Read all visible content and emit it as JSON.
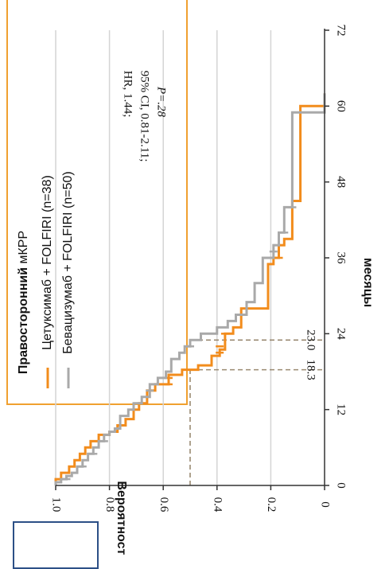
{
  "chart_data": {
    "type": "line",
    "subtype": "kaplan-meier",
    "orientation": "rotated-90-clockwise",
    "title_bold": "Правосторонний",
    "title_rest": " мКРР",
    "xlabel": "месяцы",
    "ylabel": "Вероятность ОВ",
    "xlim": [
      0,
      72
    ],
    "ylim": [
      0,
      1.0
    ],
    "xticks": [
      "0",
      "12",
      "24",
      "36",
      "48",
      "60",
      "72"
    ],
    "yticks": [
      "0",
      "0.2",
      "0.4",
      "0.6",
      "0.8",
      "1.0"
    ],
    "grid": true,
    "legend_position": "top-left",
    "stats": {
      "line1": "HR, 1.44;",
      "line2": "95% CI, 0.81-2.11;",
      "line3": "P=.28"
    },
    "medians": [
      {
        "label": "18.3",
        "x": 18.3,
        "y": 0.5
      },
      {
        "label": "23.0",
        "x": 23.0,
        "y": 0.5
      }
    ],
    "series": [
      {
        "name": "Цетуксимаб + FOLFIRI (n=38)",
        "color": "#f28c1c",
        "points": [
          [
            0,
            1.0
          ],
          [
            1,
            1.0
          ],
          [
            1,
            0.98
          ],
          [
            2,
            0.98
          ],
          [
            2,
            0.95
          ],
          [
            3,
            0.95
          ],
          [
            3,
            0.93
          ],
          [
            4,
            0.93
          ],
          [
            4,
            0.91
          ],
          [
            5,
            0.91
          ],
          [
            5,
            0.89
          ],
          [
            6,
            0.89
          ],
          [
            6,
            0.87
          ],
          [
            7,
            0.87
          ],
          [
            7,
            0.84
          ],
          [
            8,
            0.84
          ],
          [
            8,
            0.8
          ],
          [
            8.5,
            0.8
          ],
          [
            8.5,
            0.77
          ],
          [
            9.5,
            0.77
          ],
          [
            9.5,
            0.74
          ],
          [
            10.5,
            0.74
          ],
          [
            10.5,
            0.71
          ],
          [
            12,
            0.71
          ],
          [
            12,
            0.69
          ],
          [
            13,
            0.69
          ],
          [
            13,
            0.66
          ],
          [
            15,
            0.66
          ],
          [
            15,
            0.63
          ],
          [
            16,
            0.63
          ],
          [
            16,
            0.58
          ],
          [
            17.5,
            0.58
          ],
          [
            17.5,
            0.53
          ],
          [
            18.3,
            0.53
          ],
          [
            18.3,
            0.47
          ],
          [
            19,
            0.47
          ],
          [
            19,
            0.42
          ],
          [
            20.5,
            0.42
          ],
          [
            20.5,
            0.39
          ],
          [
            21.5,
            0.39
          ],
          [
            21.5,
            0.37
          ],
          [
            24,
            0.37
          ],
          [
            24,
            0.34
          ],
          [
            25,
            0.34
          ],
          [
            25,
            0.31
          ],
          [
            28,
            0.31
          ],
          [
            28,
            0.21
          ],
          [
            35,
            0.21
          ],
          [
            35,
            0.19
          ],
          [
            36,
            0.19
          ],
          [
            36,
            0.17
          ],
          [
            38,
            0.17
          ],
          [
            38,
            0.15
          ],
          [
            39,
            0.15
          ],
          [
            39,
            0.12
          ],
          [
            45,
            0.12
          ],
          [
            45,
            0.09
          ],
          [
            60,
            0.09
          ],
          [
            60,
            0.0
          ],
          [
            62,
            0.0
          ]
        ],
        "censored": [
          [
            16,
            0.58
          ],
          [
            17,
            0.58
          ],
          [
            21,
            0.39
          ],
          [
            22,
            0.39
          ],
          [
            24,
            0.37
          ],
          [
            36,
            0.17
          ]
        ]
      },
      {
        "name": "Бевацизумаб + FOLFIRI (n=50)",
        "color": "#a9a9a9",
        "points": [
          [
            0,
            1.0
          ],
          [
            0.5,
            1.0
          ],
          [
            0.5,
            0.98
          ],
          [
            1,
            0.98
          ],
          [
            1,
            0.96
          ],
          [
            1.5,
            0.96
          ],
          [
            1.5,
            0.94
          ],
          [
            2,
            0.94
          ],
          [
            2,
            0.92
          ],
          [
            3,
            0.92
          ],
          [
            3,
            0.9
          ],
          [
            4,
            0.9
          ],
          [
            4,
            0.88
          ],
          [
            5,
            0.88
          ],
          [
            5,
            0.86
          ],
          [
            6,
            0.86
          ],
          [
            6,
            0.84
          ],
          [
            7,
            0.84
          ],
          [
            7,
            0.82
          ],
          [
            8,
            0.82
          ],
          [
            8,
            0.8
          ],
          [
            8.5,
            0.8
          ],
          [
            8.5,
            0.78
          ],
          [
            9,
            0.78
          ],
          [
            9,
            0.76
          ],
          [
            11,
            0.76
          ],
          [
            11,
            0.73
          ],
          [
            12,
            0.73
          ],
          [
            12,
            0.71
          ],
          [
            13,
            0.71
          ],
          [
            13,
            0.68
          ],
          [
            14,
            0.68
          ],
          [
            14,
            0.65
          ],
          [
            16,
            0.65
          ],
          [
            16,
            0.62
          ],
          [
            17,
            0.62
          ],
          [
            17,
            0.59
          ],
          [
            18,
            0.59
          ],
          [
            18,
            0.57
          ],
          [
            20,
            0.57
          ],
          [
            20,
            0.54
          ],
          [
            21,
            0.54
          ],
          [
            21,
            0.52
          ],
          [
            22,
            0.52
          ],
          [
            22,
            0.5
          ],
          [
            23,
            0.5
          ],
          [
            23,
            0.46
          ],
          [
            24,
            0.46
          ],
          [
            24,
            0.4
          ],
          [
            25,
            0.4
          ],
          [
            25,
            0.36
          ],
          [
            26,
            0.36
          ],
          [
            26,
            0.33
          ],
          [
            27,
            0.33
          ],
          [
            27,
            0.29
          ],
          [
            29,
            0.29
          ],
          [
            29,
            0.26
          ],
          [
            32,
            0.26
          ],
          [
            32,
            0.23
          ],
          [
            36,
            0.23
          ],
          [
            36,
            0.19
          ],
          [
            38,
            0.19
          ],
          [
            38,
            0.17
          ],
          [
            40,
            0.17
          ],
          [
            40,
            0.15
          ],
          [
            44,
            0.15
          ],
          [
            44,
            0.12
          ],
          [
            59,
            0.12
          ],
          [
            59,
            0.0
          ],
          [
            62,
            0.0
          ]
        ],
        "censored": [
          [
            1,
            0.96
          ],
          [
            3,
            0.9
          ],
          [
            5,
            0.86
          ],
          [
            7,
            0.82
          ],
          [
            15,
            0.65
          ],
          [
            22,
            0.5
          ],
          [
            37,
            0.19
          ],
          [
            40,
            0.15
          ],
          [
            44,
            0.12
          ]
        ]
      }
    ]
  }
}
